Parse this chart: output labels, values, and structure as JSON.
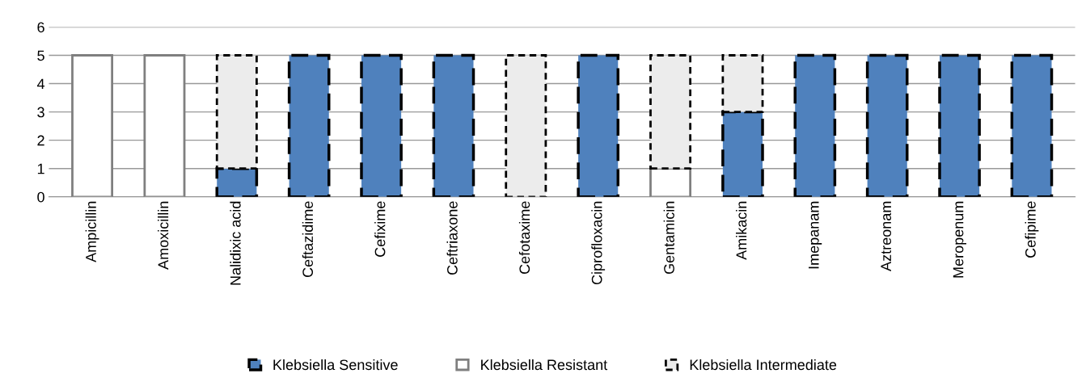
{
  "chart_data": {
    "type": "bar",
    "stacked": true,
    "categories": [
      "Ampicillin",
      "Amoxicillin",
      "Nalidixic acid",
      "Ceftazidime",
      "Cefixime",
      "Ceftriaxone",
      "Cefotaxime",
      "Ciprofloxacin",
      "Gentamicin",
      "Amikacin",
      "Imepanam",
      "Aztreonam",
      "Meropenum",
      "Cefipime"
    ],
    "series": [
      {
        "name": "Klebsiella Sensitive",
        "color": "#4f81bd",
        "values": [
          0,
          0,
          1,
          5,
          5,
          5,
          0,
          5,
          0,
          3,
          5,
          5,
          5,
          5
        ]
      },
      {
        "name": "Klebsiella Resistant",
        "color": "#ffffff",
        "values": [
          5,
          5,
          0,
          0,
          0,
          0,
          0,
          0,
          1,
          0,
          0,
          0,
          0,
          0
        ]
      },
      {
        "name": "Klebsiella Intermediate",
        "color": "#ececec",
        "values": [
          0,
          0,
          4,
          0,
          0,
          0,
          5,
          0,
          4,
          2,
          0,
          0,
          0,
          0
        ]
      }
    ],
    "ylim": [
      0,
      6
    ],
    "yticks": [
      0,
      1,
      2,
      3,
      4,
      5,
      6
    ],
    "grid": "y",
    "legend": "bottom"
  }
}
